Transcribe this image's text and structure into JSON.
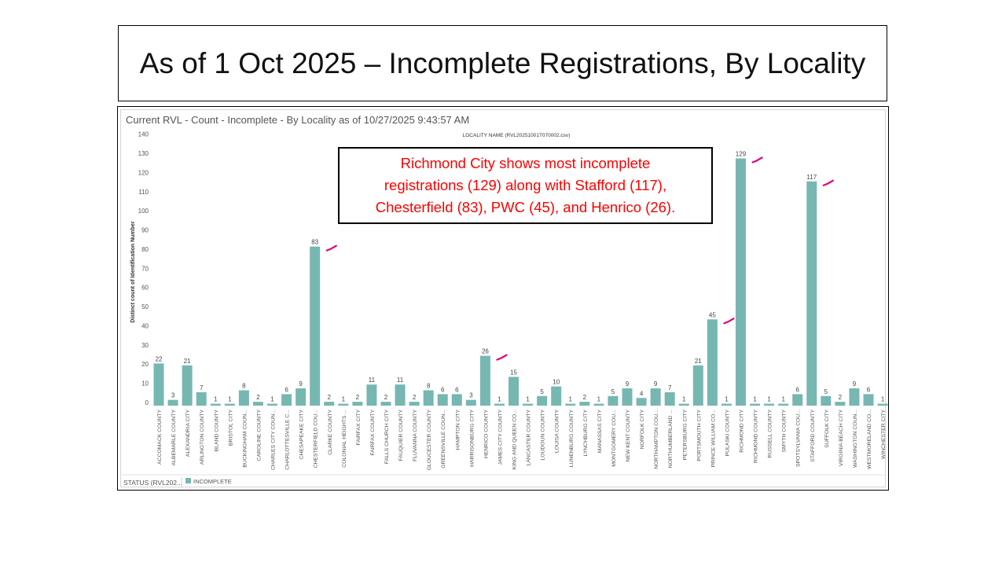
{
  "slide_title": "As of 1 Oct 2025 – Incomplete Registrations, By Locality",
  "callout": {
    "lines": [
      "Richmond City shows most incomplete",
      "registrations (129) along with Stafford (117),",
      "Chesterfield (83),  PWC (45), and Henrico (26)."
    ]
  },
  "chart_data": {
    "type": "bar",
    "title": "Current RVL - Count - Incomplete - By Locality as of 10/27/2025 9:43:57 AM",
    "subtitle": "LOCALITY NAME (RVL20251001T070002.csv)",
    "ylabel": "Distinct count of Identification Number",
    "ylim": [
      0,
      140
    ],
    "yticks": [
      0,
      10,
      20,
      30,
      40,
      50,
      60,
      70,
      80,
      90,
      100,
      110,
      120,
      130,
      140
    ],
    "grid": false,
    "bar_color": "#76b7b2",
    "legend": {
      "field": "STATUS (RVL202...",
      "entries": [
        "INCOMPLETE"
      ],
      "placement": "bottom-left"
    },
    "categories": [
      "ACCOMACK COUNTY",
      "ALBEMARLE COUNTY",
      "ALEXANDRIA CITY",
      "ARLINGTON COUNTY",
      "BLAND COUNTY",
      "BRISTOL CITY",
      "BUCKINGHAM COUN...",
      "CAROLINE COUNTY",
      "CHARLES CITY COUN...",
      "CHARLOTTESVILLE C...",
      "CHESAPEAKE CITY",
      "CHESTERFIELD COU...",
      "CLARKE COUNTY",
      "COLONIAL HEIGHTS ...",
      "FAIRFAX CITY",
      "FAIRFAX COUNTY",
      "FALLS CHURCH CITY",
      "FAUQUIER COUNTY",
      "FLUVANNA COUNTY",
      "GLOUCESTER COUNTY",
      "GREENSVILLE COUN...",
      "HAMPTON CITY",
      "HARRISONBURG CITY",
      "HENRICO COUNTY",
      "JAMES CITY COUNTY",
      "KING AND QUEEN CO...",
      "LANCASTER COUNTY",
      "LOUDOUN COUNTY",
      "LOUISA COUNTY",
      "LUNENBURG COUNTY",
      "LYNCHBURG CITY",
      "MANASSAS CITY",
      "MONTGOMERY COU...",
      "NEW KENT COUNTY",
      "NORFOLK CITY",
      "NORTHAMPTON COU...",
      "NORTHUMBERLAND ...",
      "PETERSBURG CITY",
      "PORTSMOUTH CITY",
      "PRINCE WILLIAM CO...",
      "PULASKI COUNTY",
      "RICHMOND CITY",
      "RICHMOND COUNTY",
      "RUSSELL COUNTY",
      "SMYTH COUNTY",
      "SPOTSYLVANIA COU...",
      "STAFFORD COUNTY",
      "SUFFOLK CITY",
      "VIRGINIA BEACH CITY",
      "WASHINGTON COUN...",
      "WESTMORELAND CO...",
      "WINCHESTER CITY"
    ],
    "values": [
      22,
      3,
      21,
      7,
      1,
      1,
      8,
      2,
      1,
      6,
      9,
      83,
      2,
      1,
      2,
      11,
      2,
      11,
      2,
      8,
      6,
      6,
      3,
      26,
      1,
      15,
      1,
      5,
      10,
      1,
      2,
      1,
      5,
      9,
      4,
      9,
      7,
      1,
      21,
      45,
      1,
      129,
      1,
      1,
      1,
      6,
      117,
      5,
      2,
      9,
      6,
      1
    ],
    "annotations": {
      "type": "check-marks",
      "color": "#e8006f",
      "at": [
        "CHESTERFIELD COU...",
        "HENRICO COUNTY",
        "PRINCE WILLIAM CO...",
        "RICHMOND CITY",
        "STAFFORD COUNTY"
      ]
    }
  }
}
